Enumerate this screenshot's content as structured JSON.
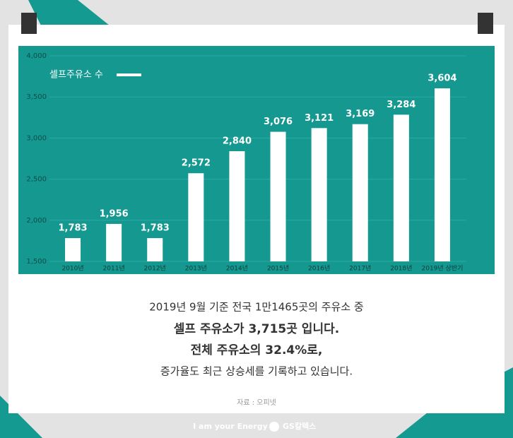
{
  "chart_data": {
    "type": "bar",
    "categories": [
      "2010년",
      "2011년",
      "2012년",
      "2013년",
      "2014년",
      "2015년",
      "2016년",
      "2017년",
      "2018년",
      "2019년 상반기"
    ],
    "series": [
      {
        "name": "셀프주유소 수",
        "color": "#ffffff",
        "values": [
          1783,
          1956,
          1783,
          2572,
          2840,
          3076,
          3121,
          3169,
          3284,
          3604
        ],
        "value_labels": [
          "1,783",
          "1,956",
          "1,783",
          "2,572",
          "2,840",
          "3,076",
          "3,121",
          "3,169",
          "3,284",
          "3,604"
        ]
      }
    ],
    "ylim": [
      1500,
      4000
    ],
    "yticks": [
      {
        "value": 1500,
        "label": "1,500"
      },
      {
        "value": 2000,
        "label": "2,000"
      },
      {
        "value": 2500,
        "label": "2,500"
      },
      {
        "value": 3000,
        "label": "3,000"
      },
      {
        "value": 3500,
        "label": "3,500"
      },
      {
        "value": 4000,
        "label": "4,000"
      }
    ],
    "grid": true
  },
  "text": {
    "lines": [
      "2019년 9월 기준 전국 1만1465곳의 주유소 중",
      "셀프 주유소가 3,715곳 입니다.",
      "전체 주유소의 32.4%로,",
      "증가율도 최근 상승세를 기록하고 있습니다."
    ],
    "source": "자료 : 오피넷"
  },
  "footer": {
    "slogan": "I am your Energy",
    "brand": "GS칼텍스"
  }
}
